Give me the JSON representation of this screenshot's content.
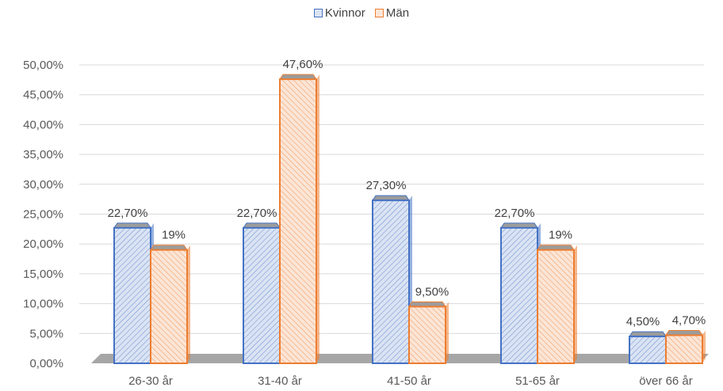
{
  "chart_data": {
    "type": "bar",
    "categories": [
      "26-30 år",
      "31-40 år",
      "41-50 år",
      "51-65 år",
      "över 66 år"
    ],
    "series": [
      {
        "name": "Kvinnor",
        "values": [
          22.7,
          22.7,
          27.3,
          22.7,
          4.5
        ],
        "labels": [
          "22,70%",
          "22,70%",
          "27,30%",
          "22,70%",
          "4,50%"
        ],
        "color": "#4472C4",
        "fill": "#DAE3F3"
      },
      {
        "name": "Män",
        "values": [
          19,
          47.6,
          9.5,
          19,
          4.7
        ],
        "labels": [
          "19%",
          "47,60%",
          "9,50%",
          "19%",
          "4,70%"
        ],
        "color": "#ED7D31",
        "fill": "#FBE5D6"
      }
    ],
    "ylim": [
      0,
      50
    ],
    "yticks": [
      "0,00%",
      "5,00%",
      "10,00%",
      "15,00%",
      "20,00%",
      "25,00%",
      "30,00%",
      "35,00%",
      "40,00%",
      "45,00%",
      "50,00%"
    ],
    "legend_position": "top",
    "grid": true,
    "style": "3d-clustered-column-hatched"
  }
}
